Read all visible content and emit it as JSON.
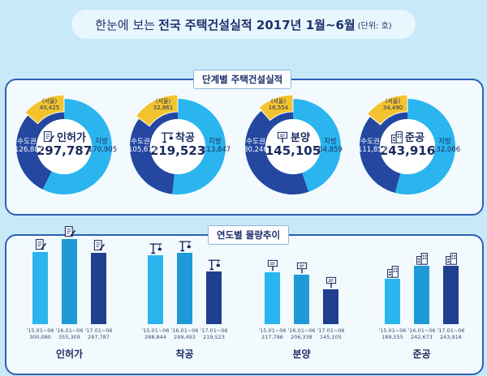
{
  "title": {
    "prefix": "한눈에 보는",
    "main": "전국 주택건설실적 2017년 1월~6월",
    "unit": "(단위: 호)"
  },
  "section1": {
    "label": "단계별 주택건설실적"
  },
  "section2": {
    "label": "연도별 물량추이"
  },
  "colors": {
    "metro": "#2448a0",
    "local": "#2bb5ef",
    "seoul": "#f4c430",
    "frame": "#2d5fb5"
  },
  "chart_data": [
    {
      "type": "pie",
      "title": "단계별 주택건설실적",
      "donuts": [
        {
          "name": "인허가",
          "total": "297,787",
          "icon": "permit-document-icon",
          "slices": [
            {
              "label": "수도권",
              "value": 126882,
              "display": "126,882"
            },
            {
              "label": "지방",
              "value": 170905,
              "display": "170,905"
            }
          ],
          "seoul": {
            "label": "(서울)",
            "value": 40425,
            "display": "40,425"
          }
        },
        {
          "name": "착공",
          "total": "219,523",
          "icon": "crane-icon",
          "slices": [
            {
              "label": "수도권",
              "value": 105676,
              "display": "105,676"
            },
            {
              "label": "지방",
              "value": 113847,
              "display": "113,847"
            }
          ],
          "seoul": {
            "label": "(서울)",
            "value": 32861,
            "display": "32,861"
          }
        },
        {
          "name": "분양",
          "total": "145,105",
          "icon": "sale-house-icon",
          "slices": [
            {
              "label": "수도권",
              "value": 80246,
              "display": "80,246"
            },
            {
              "label": "지방",
              "value": 64859,
              "display": "64,859"
            }
          ],
          "seoul": {
            "label": "(서울)",
            "value": 16554,
            "display": "16,554"
          }
        },
        {
          "name": "준공",
          "total": "243,916",
          "icon": "building-icon",
          "slices": [
            {
              "label": "수도권",
              "value": 111850,
              "display": "111,850"
            },
            {
              "label": "지방",
              "value": 132066,
              "display": "132,066"
            }
          ],
          "seoul": {
            "label": "(서울)",
            "value": 34490,
            "display": "34,490"
          }
        }
      ]
    },
    {
      "type": "bar",
      "title": "연도별 물량추이",
      "ylim": [
        0,
        400000
      ],
      "groups": [
        {
          "name": "인허가",
          "icon": "permit-document-icon",
          "categories": [
            "'15.01~06",
            "'16.01~06",
            "'17.01~06"
          ],
          "values": [
            300080,
            355309,
            297787
          ],
          "value_labels": [
            "300,080",
            "355,309",
            "297,787"
          ]
        },
        {
          "name": "착공",
          "icon": "crane-icon",
          "categories": [
            "'15.01~06",
            "'16.01~06",
            "'17.01~06"
          ],
          "values": [
            288844,
            299493,
            219523
          ],
          "value_labels": [
            "288,844",
            "299,493",
            "219,523"
          ]
        },
        {
          "name": "분양",
          "icon": "sale-house-icon",
          "categories": [
            "'15.01~06",
            "'16.01~06",
            "'17.01~06"
          ],
          "values": [
            217796,
            206338,
            145105
          ],
          "value_labels": [
            "217,796",
            "206,338",
            "145,105"
          ]
        },
        {
          "name": "준공",
          "icon": "building-icon",
          "categories": [
            "'15.01~06",
            "'16.01~06",
            "'17.01~06"
          ],
          "values": [
            189555,
            242673,
            243916
          ],
          "value_labels": [
            "189,555",
            "242,673",
            "243,916"
          ]
        }
      ]
    }
  ]
}
